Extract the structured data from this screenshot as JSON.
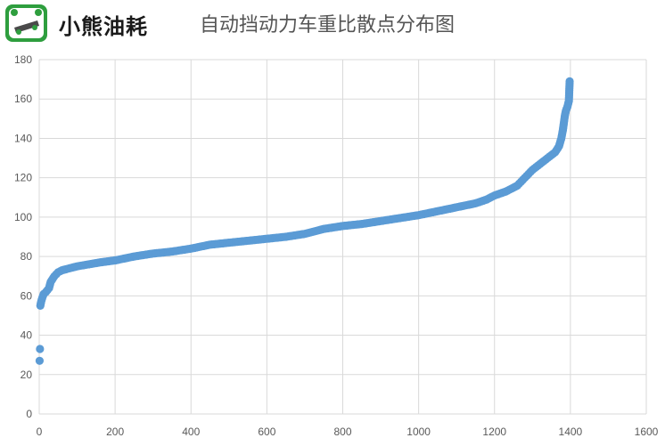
{
  "header": {
    "brand": "小熊油耗",
    "title": "自动挡动力车重比散点分布图"
  },
  "chart_data": {
    "type": "scatter",
    "title": "自动挡动力车重比散点分布图",
    "xlabel": "",
    "ylabel": "",
    "xlim": [
      0,
      1600
    ],
    "ylim": [
      0,
      180
    ],
    "xticks": [
      "0",
      "200",
      "400",
      "600",
      "800",
      "1000",
      "1200",
      "1400",
      "1600"
    ],
    "yticks": [
      "0",
      "20",
      "40",
      "60",
      "80",
      "100",
      "120",
      "140",
      "160",
      "180"
    ],
    "grid": true,
    "marker_color": "#5b9bd5",
    "points_note": "approx. 1400 points sorted ascending; curve sampled",
    "x": [
      1,
      2,
      3,
      5,
      8,
      12,
      18,
      22,
      26,
      30,
      40,
      50,
      60,
      80,
      100,
      130,
      160,
      200,
      250,
      300,
      350,
      400,
      450,
      500,
      550,
      600,
      650,
      700,
      750,
      800,
      850,
      900,
      950,
      1000,
      1050,
      1100,
      1150,
      1180,
      1200,
      1230,
      1260,
      1280,
      1300,
      1320,
      1340,
      1360,
      1370,
      1376,
      1380,
      1385,
      1388,
      1392,
      1396,
      1398
    ],
    "y": [
      27,
      33,
      55,
      57,
      59,
      61,
      62,
      63,
      64,
      67,
      70,
      72,
      73,
      74,
      75,
      76,
      77,
      78,
      80,
      81.5,
      82.5,
      84,
      86,
      87,
      88,
      89,
      90,
      91.5,
      94,
      95.5,
      96.5,
      98,
      99.5,
      101,
      103,
      105,
      107,
      109,
      111,
      113,
      116,
      120,
      124,
      127,
      130,
      133,
      136,
      140,
      144,
      151,
      154,
      156,
      159,
      169
    ]
  }
}
